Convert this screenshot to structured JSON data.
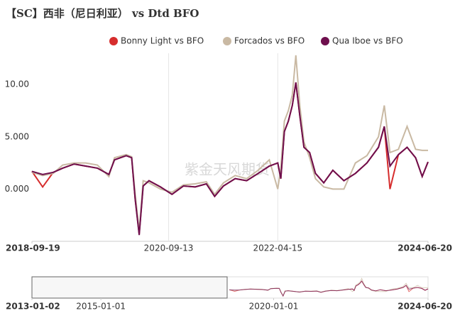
{
  "chart_data": {
    "type": "line",
    "title": "【SC】西非（尼日利亚） vs Dtd BFO",
    "watermark": "紫金天风期货",
    "x": [
      "2018-09-19",
      "2018-11-15",
      "2019-01-10",
      "2019-03-01",
      "2019-05-01",
      "2019-07-01",
      "2019-09-01",
      "2019-11-01",
      "2019-12-01",
      "2020-02-01",
      "2020-03-01",
      "2020-03-20",
      "2020-04-10",
      "2020-05-01",
      "2020-06-01",
      "2020-08-01",
      "2020-10-01",
      "2020-12-01",
      "2021-02-01",
      "2021-04-01",
      "2021-05-15",
      "2021-07-01",
      "2021-09-01",
      "2021-11-01",
      "2022-01-01",
      "2022-03-01",
      "2022-04-15",
      "2022-05-01",
      "2022-05-20",
      "2022-06-10",
      "2022-07-01",
      "2022-07-20",
      "2022-08-10",
      "2022-09-01",
      "2022-10-01",
      "2022-11-01",
      "2022-12-15",
      "2023-02-01",
      "2023-04-01",
      "2023-06-01",
      "2023-08-01",
      "2023-10-01",
      "2023-11-01",
      "2023-12-01",
      "2024-01-15",
      "2024-03-01",
      "2024-04-15",
      "2024-05-20",
      "2024-06-20"
    ],
    "series": [
      {
        "name": "Bonny Light vs BFO",
        "color": "#d62d2d",
        "values": [
          1.7,
          0.2,
          1.6,
          2.0,
          2.4,
          2.2,
          2.0,
          1.4,
          2.8,
          3.2,
          3.0,
          -1.0,
          -4.3,
          0.3,
          0.8,
          0.2,
          -0.5,
          0.3,
          0.2,
          0.5,
          -0.7,
          0.3,
          1.0,
          0.8,
          1.5,
          2.2,
          2.5,
          1.0,
          5.5,
          6.5,
          8.0,
          10.2,
          7.0,
          4.0,
          3.5,
          1.5,
          0.6,
          1.8,
          0.8,
          1.5,
          2.5,
          4.0,
          6.0,
          0.0,
          3.3,
          4.0,
          3.0,
          1.2,
          2.6
        ]
      },
      {
        "name": "Forcados vs BFO",
        "color": "#c9b9a3",
        "values": [
          1.6,
          1.3,
          1.5,
          2.3,
          2.5,
          2.5,
          2.3,
          1.2,
          3.0,
          3.3,
          3.1,
          -0.5,
          -4.0,
          0.8,
          0.6,
          0.0,
          -0.3,
          0.4,
          0.5,
          0.7,
          -0.5,
          0.6,
          1.3,
          1.0,
          1.8,
          2.8,
          0.0,
          2.0,
          6.5,
          7.5,
          9.0,
          12.8,
          8.0,
          4.5,
          3.0,
          1.0,
          0.2,
          0.0,
          0.0,
          2.5,
          3.2,
          5.0,
          8.0,
          3.5,
          3.8,
          6.0,
          3.8,
          3.7,
          3.7
        ]
      },
      {
        "name": "Qua Iboe vs BFO",
        "color": "#6e0f4d",
        "values": [
          1.7,
          1.4,
          1.6,
          2.0,
          2.4,
          2.2,
          2.0,
          1.4,
          2.8,
          3.2,
          3.0,
          -1.0,
          -4.4,
          0.3,
          0.8,
          0.2,
          -0.5,
          0.3,
          0.2,
          0.5,
          -0.7,
          0.3,
          1.0,
          0.8,
          1.5,
          2.2,
          2.5,
          1.0,
          5.5,
          6.5,
          8.0,
          10.2,
          7.0,
          4.0,
          3.5,
          1.5,
          0.6,
          1.8,
          0.8,
          1.5,
          2.5,
          4.0,
          6.0,
          2.2,
          3.3,
          4.0,
          3.0,
          1.2,
          2.6
        ]
      }
    ],
    "xlim": [
      "2018-09-19",
      "2024-06-20"
    ],
    "xticks": [
      "2018-09-19",
      "2020-09-13",
      "2022-04-15",
      "2024-06-20"
    ],
    "ylim": [
      -5,
      13
    ],
    "yticks": [
      {
        "value": 0,
        "label": "0.000"
      },
      {
        "value": 5,
        "label": "5.000"
      },
      {
        "value": 10,
        "label": "10.00"
      }
    ],
    "grid": "x",
    "legend": "top-right",
    "navigator": {
      "xlim": [
        "2013-01-02",
        "2024-06-20"
      ],
      "xticks": [
        "2013-01-02",
        "2015-01-01",
        "2020-01-01",
        "2024-06-20"
      ]
    }
  }
}
